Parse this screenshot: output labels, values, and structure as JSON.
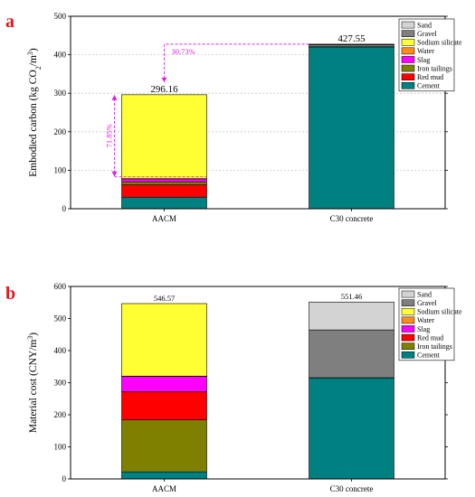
{
  "colors": {
    "Sand": "#d3d3d3",
    "Gravel": "#7f7f7f",
    "Sodium silicate": "#ffff33",
    "Water": "#ff8c1a",
    "Slag": "#ff00ff",
    "Iron tailings": "#808000",
    "Red mud": "#ff0000",
    "Cement": "#008080",
    "annotation": "#e020e0",
    "panel_letter": "#e8171b",
    "grid": "#c8c8c8"
  },
  "chart_data": [
    {
      "type": "bar",
      "stacked": true,
      "panel_letter": "a",
      "categories": [
        "AACM",
        "C30 concrete"
      ],
      "ylabel": "Embodied carbon (kg CO2/m3)",
      "ylim": [
        0,
        500
      ],
      "yticks": [
        0,
        100,
        200,
        300,
        400,
        500
      ],
      "grid": true,
      "legend_position": "top-right",
      "legend_order": [
        "Sand",
        "Gravel",
        "Sodium silicate",
        "Water",
        "Slag",
        "Iron tailings",
        "Red mud",
        "Cement"
      ],
      "series": [
        {
          "name": "Cement",
          "values": [
            30,
            420.5
          ]
        },
        {
          "name": "Red mud",
          "values": [
            32,
            0
          ]
        },
        {
          "name": "Iron tailings",
          "values": [
            8,
            0
          ]
        },
        {
          "name": "Slag",
          "values": [
            8,
            0
          ]
        },
        {
          "name": "Water",
          "values": [
            0.16,
            0.25
          ]
        },
        {
          "name": "Sodium silicate",
          "values": [
            218,
            0
          ]
        },
        {
          "name": "Gravel",
          "values": [
            0,
            5.5
          ]
        },
        {
          "name": "Sand",
          "values": [
            0,
            1.3
          ]
        }
      ],
      "totals": [
        "296.16",
        "427.55"
      ],
      "annotations": [
        {
          "text": "30.73%",
          "ref_value": 427.55,
          "target_value": 296.16
        },
        {
          "text": "71.85%",
          "from_value": 296.16,
          "to_value": 83
        }
      ]
    },
    {
      "type": "bar",
      "stacked": true,
      "panel_letter": "b",
      "categories": [
        "AACM",
        "C30 concrete"
      ],
      "ylabel": "Material cost (CNY/m3)",
      "ylim": [
        0,
        600
      ],
      "yticks": [
        0,
        100,
        200,
        300,
        400,
        500,
        600
      ],
      "grid": false,
      "legend_position": "top-right",
      "legend_order": [
        "Sand",
        "Gravel",
        "Sodium silicate",
        "Water",
        "Slag",
        "Red mud",
        "Iron tailings",
        "Cement"
      ],
      "series": [
        {
          "name": "Cement",
          "values": [
            22,
            315
          ]
        },
        {
          "name": "Iron tailings",
          "values": [
            162,
            0
          ]
        },
        {
          "name": "Red mud",
          "values": [
            88,
            0
          ]
        },
        {
          "name": "Slag",
          "values": [
            48,
            0
          ]
        },
        {
          "name": "Water",
          "values": [
            0.5,
            0.5
          ]
        },
        {
          "name": "Sodium silicate",
          "values": [
            226.07,
            0
          ]
        },
        {
          "name": "Gravel",
          "values": [
            0,
            149
          ]
        },
        {
          "name": "Sand",
          "values": [
            0,
            86.96
          ]
        }
      ],
      "totals": [
        "546.57",
        "551.46"
      ]
    }
  ]
}
